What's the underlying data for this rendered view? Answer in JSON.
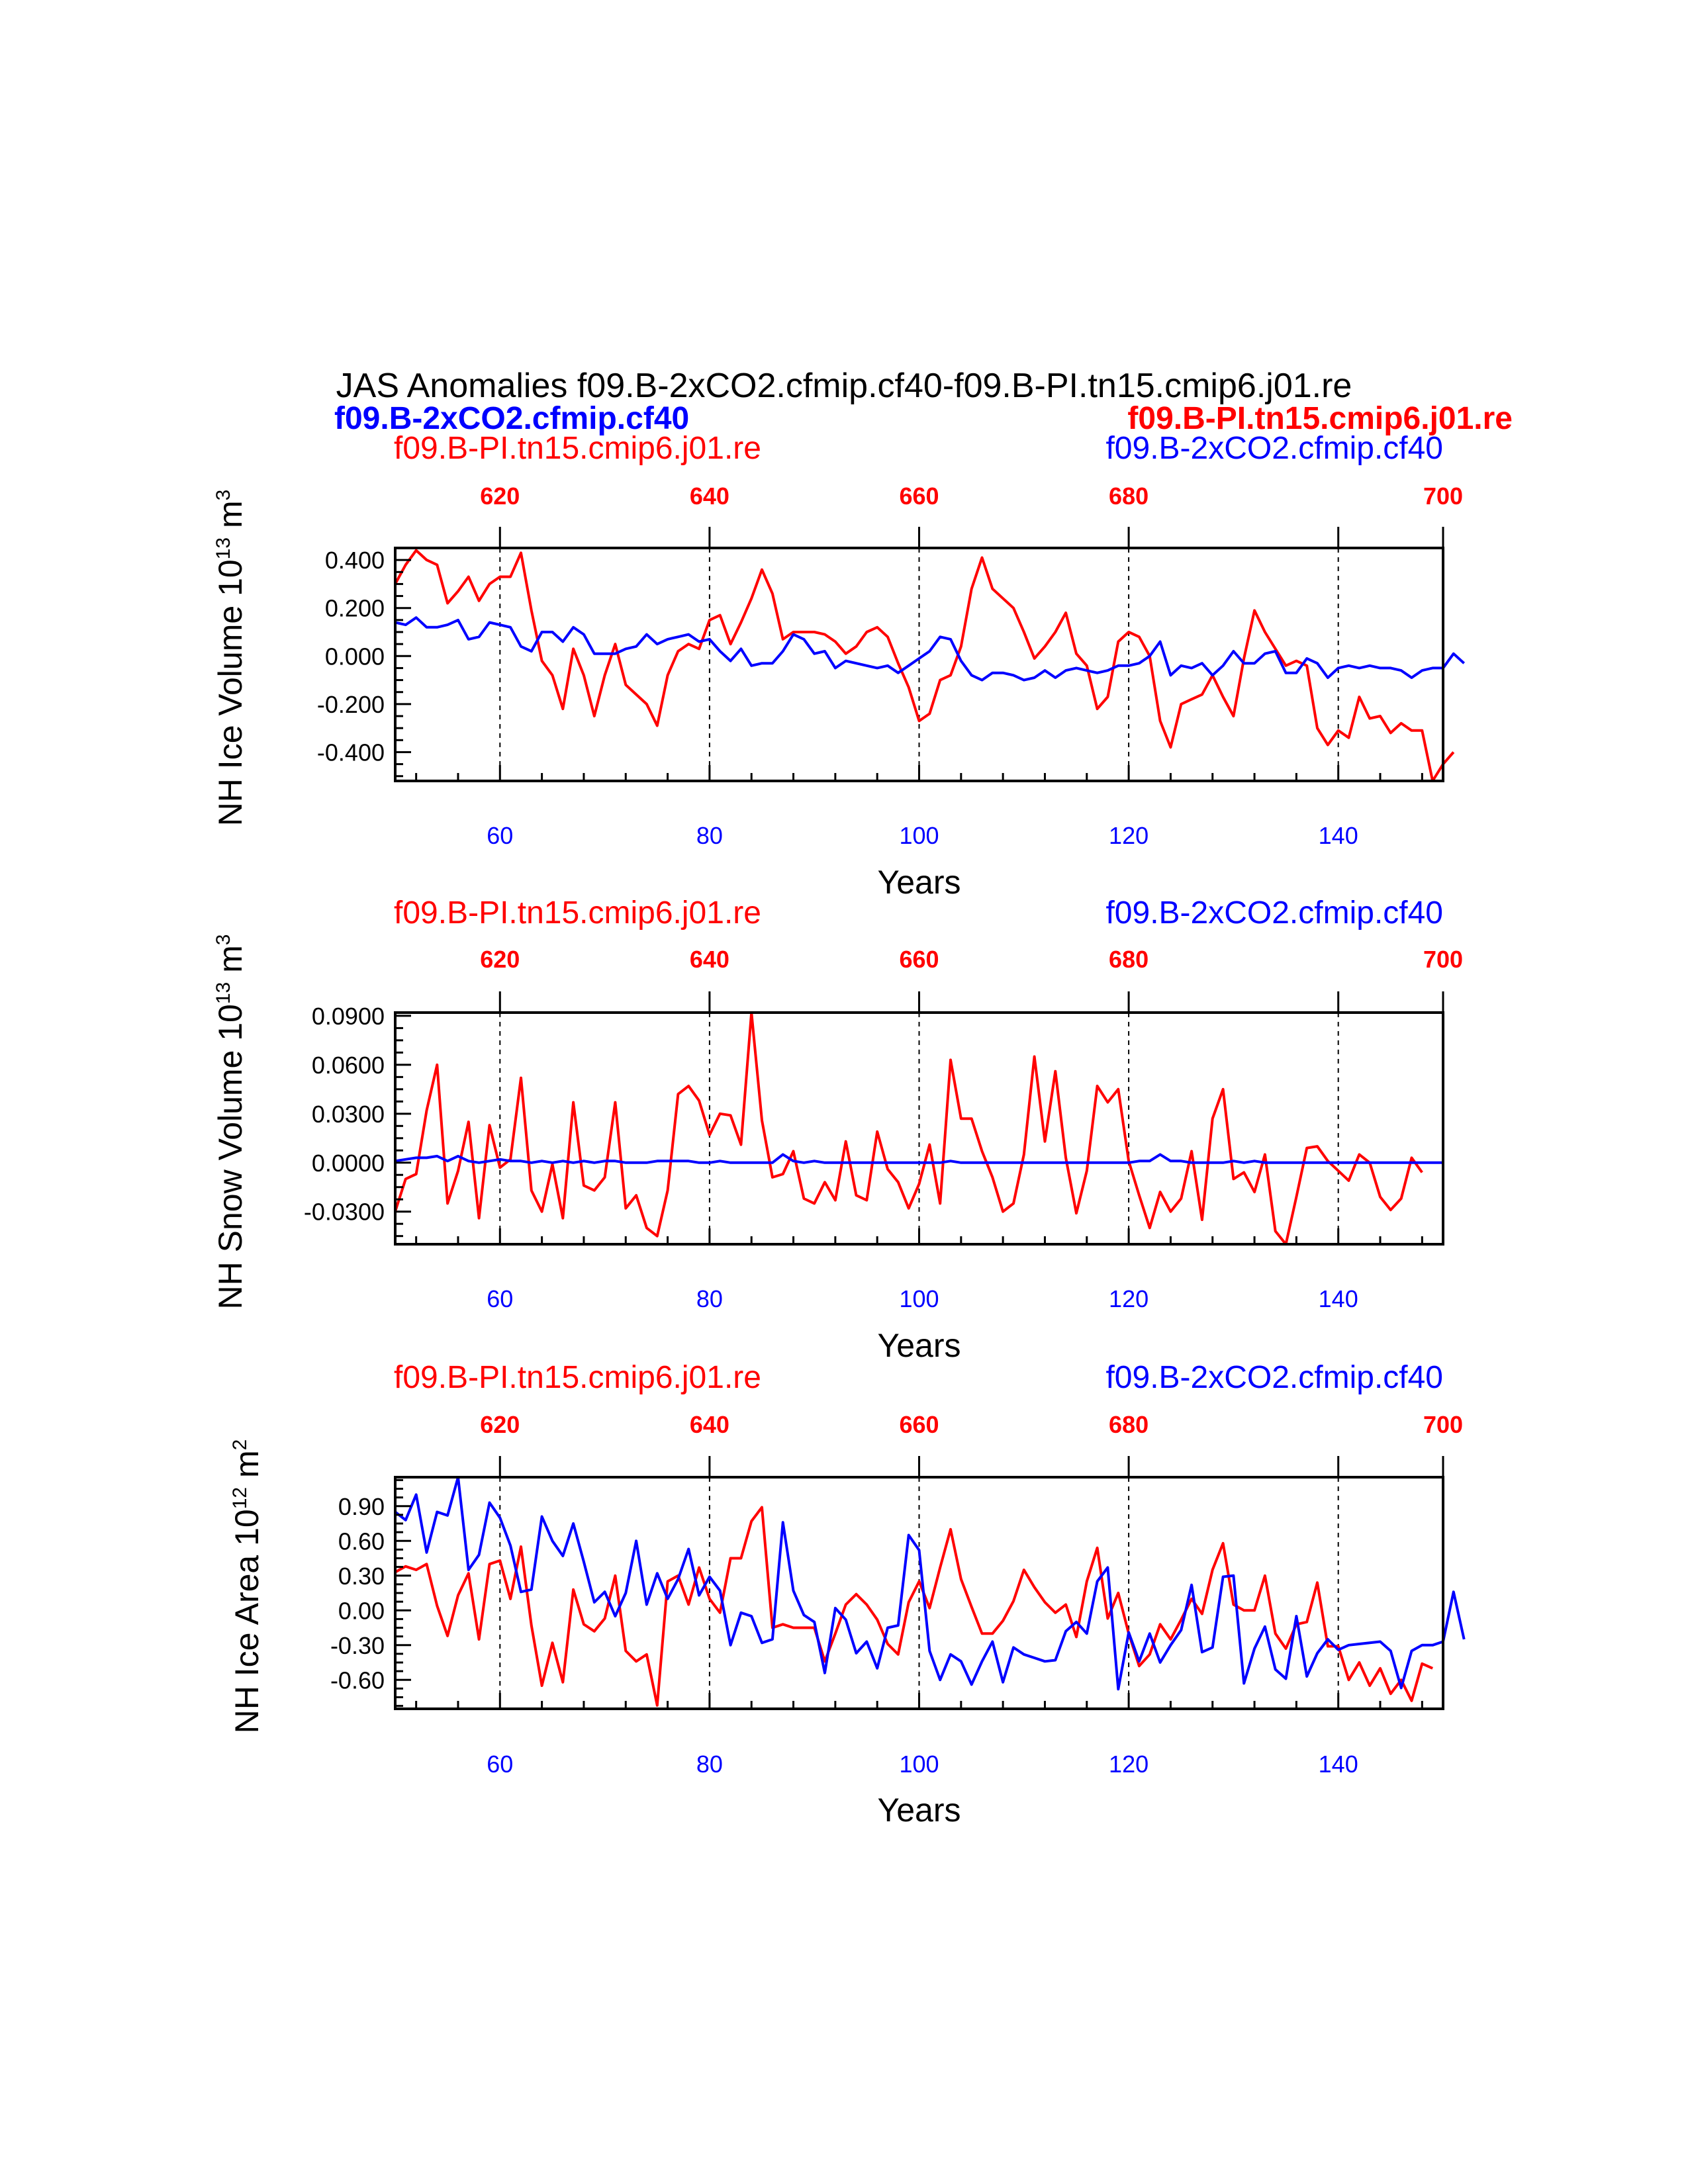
{
  "title": "JAS Anomalies f09.B-2xCO2.cfmip.cf40-f09.B-PI.tn15.cmip6.j01.re",
  "header_bold": {
    "left": {
      "text": "f09.B-2xCO2.cfmip.cf40",
      "color": "#0000ff"
    },
    "right": {
      "text": "f09.B-PI.tn15.cmip6.j01.re",
      "color": "#ff0000"
    }
  },
  "colors": {
    "series_a": "#0000ff",
    "series_b": "#ff0000",
    "axis": "#000000"
  },
  "chart_data": [
    {
      "type": "line",
      "id": "ice-volume",
      "left_label": "f09.B-PI.tn15.cmip6.j01.re",
      "right_label": "f09.B-2xCO2.cfmip.cf40",
      "ylabel_main": "NH Ice Volume 10",
      "ylabel_sup": "13",
      "ylabel_unit": " m",
      "ylabel_unit_sup": "3",
      "xlabel": "Years",
      "xlim": [
        50,
        150
      ],
      "ylim": [
        -0.52,
        0.45
      ],
      "yticks": [
        -0.4,
        -0.2,
        0.0,
        0.2,
        0.4
      ],
      "ytick_labels": [
        "-0.400",
        "-0.200",
        "0.000",
        "0.200",
        "0.400"
      ],
      "xticks": [
        60,
        80,
        100,
        120,
        140
      ],
      "xtick_labels": [
        "60",
        "80",
        "100",
        "120",
        "140"
      ],
      "top_ticks": [
        60,
        80,
        100,
        120,
        140,
        150
      ],
      "top_tick_labels": [
        "620",
        "640",
        "660",
        "680",
        "700"
      ],
      "top_tick_positions": [
        60,
        80,
        100,
        120,
        150
      ],
      "vlines": [
        60,
        80,
        100,
        120,
        140
      ],
      "x_start": 50,
      "series": [
        {
          "name": "f09.B-2xCO2.cfmip.cf40",
          "color": "#0000ff",
          "values": [
            0.14,
            0.13,
            0.16,
            0.12,
            0.12,
            0.13,
            0.15,
            0.07,
            0.08,
            0.14,
            0.13,
            0.12,
            0.04,
            0.02,
            0.1,
            0.1,
            0.06,
            0.12,
            0.09,
            0.01,
            0.01,
            0.01,
            0.03,
            0.04,
            0.09,
            0.05,
            0.07,
            0.08,
            0.09,
            0.06,
            0.07,
            0.02,
            -0.02,
            0.03,
            -0.04,
            -0.03,
            -0.03,
            0.02,
            0.09,
            0.07,
            0.01,
            0.02,
            -0.05,
            -0.02,
            -0.03,
            -0.04,
            -0.05,
            -0.04,
            -0.07,
            -0.04,
            -0.01,
            0.02,
            0.08,
            0.07,
            -0.02,
            -0.08,
            -0.1,
            -0.07,
            -0.07,
            -0.08,
            -0.1,
            -0.09,
            -0.06,
            -0.09,
            -0.06,
            -0.05,
            -0.06,
            -0.07,
            -0.06,
            -0.04,
            -0.04,
            -0.03,
            0.0,
            0.06,
            -0.08,
            -0.04,
            -0.05,
            -0.03,
            -0.08,
            -0.04,
            0.02,
            -0.03,
            -0.03,
            0.01,
            0.02,
            -0.07,
            -0.07,
            -0.01,
            -0.03,
            -0.09,
            -0.05,
            -0.04,
            -0.05,
            -0.04,
            -0.05,
            -0.05,
            -0.06,
            -0.09,
            -0.06,
            -0.05,
            -0.05,
            0.01,
            -0.03
          ]
        },
        {
          "name": "f09.B-PI.tn15.cmip6.j01.re",
          "color": "#ff0000",
          "values": [
            0.3,
            0.38,
            0.44,
            0.4,
            0.38,
            0.22,
            0.27,
            0.33,
            0.23,
            0.3,
            0.33,
            0.33,
            0.43,
            0.19,
            -0.02,
            -0.08,
            -0.22,
            0.03,
            -0.08,
            -0.25,
            -0.08,
            0.05,
            -0.12,
            -0.16,
            -0.2,
            -0.29,
            -0.08,
            0.02,
            0.05,
            0.03,
            0.15,
            0.17,
            0.05,
            0.14,
            0.24,
            0.36,
            0.26,
            0.07,
            0.1,
            0.1,
            0.1,
            0.09,
            0.06,
            0.01,
            0.04,
            0.1,
            0.12,
            0.08,
            -0.03,
            -0.13,
            -0.27,
            -0.24,
            -0.1,
            -0.08,
            0.04,
            0.28,
            0.41,
            0.28,
            0.24,
            0.2,
            0.1,
            -0.01,
            0.04,
            0.1,
            0.18,
            0.01,
            -0.04,
            -0.22,
            -0.17,
            0.06,
            0.1,
            0.08,
            0.0,
            -0.27,
            -0.38,
            -0.2,
            -0.18,
            -0.16,
            -0.08,
            -0.17,
            -0.25,
            -0.01,
            0.19,
            0.1,
            0.03,
            -0.04,
            -0.02,
            -0.04,
            -0.3,
            -0.37,
            -0.31,
            -0.34,
            -0.17,
            -0.26,
            -0.25,
            -0.32,
            -0.28,
            -0.31,
            -0.31,
            -0.52,
            -0.45,
            -0.4
          ]
        }
      ]
    },
    {
      "type": "line",
      "id": "snow-volume",
      "left_label": "f09.B-PI.tn15.cmip6.j01.re",
      "right_label": "f09.B-2xCO2.cfmip.cf40",
      "ylabel_main": "NH Snow Volume 10",
      "ylabel_sup": "13",
      "ylabel_unit": " m",
      "ylabel_unit_sup": "3",
      "xlabel": "Years",
      "xlim": [
        50,
        150
      ],
      "ylim": [
        -0.05,
        0.092
      ],
      "yticks": [
        -0.03,
        0.0,
        0.03,
        0.06,
        0.09
      ],
      "ytick_labels": [
        "-0.0300",
        "0.0000",
        "0.0300",
        "0.0600",
        "0.0900"
      ],
      "xticks": [
        60,
        80,
        100,
        120,
        140
      ],
      "xtick_labels": [
        "60",
        "80",
        "100",
        "120",
        "140"
      ],
      "top_ticks": [
        60,
        80,
        100,
        120,
        140,
        150
      ],
      "top_tick_labels": [
        "620",
        "640",
        "660",
        "680",
        "700"
      ],
      "top_tick_positions": [
        60,
        80,
        100,
        120,
        150
      ],
      "vlines": [
        60,
        80,
        100,
        120,
        140
      ],
      "x_start": 50,
      "series": [
        {
          "name": "f09.B-2xCO2.cfmip.cf40",
          "color": "#0000ff",
          "values": [
            0.001,
            0.002,
            0.003,
            0.003,
            0.004,
            0.001,
            0.004,
            0.001,
            0.0,
            0.001,
            0.002,
            0.001,
            0.001,
            0.0,
            0.001,
            0.0,
            0.001,
            0.0,
            0.001,
            0.0,
            0.001,
            0.001,
            0.0,
            0.0,
            0.0,
            0.001,
            0.001,
            0.001,
            0.001,
            0.0,
            0.0,
            0.001,
            0.0,
            0.0,
            0.0,
            0.0,
            0.0,
            0.005,
            0.001,
            0.0,
            0.001,
            0.0,
            0.0,
            0.0,
            0.0,
            0.0,
            0.0,
            0.0,
            0.0,
            0.0,
            0.0,
            0.0,
            0.0,
            0.001,
            0.0,
            0.0,
            0.0,
            0.0,
            0.0,
            0.0,
            0.0,
            0.0,
            0.0,
            0.0,
            0.0,
            0.0,
            0.0,
            0.0,
            0.0,
            0.0,
            0.0,
            0.001,
            0.001,
            0.005,
            0.001,
            0.001,
            0.0,
            0.0,
            0.0,
            0.0,
            0.001,
            0.0,
            0.001,
            0.0,
            0.0,
            0.0,
            0.0,
            0.0,
            0.0,
            0.0,
            0.0,
            0.0,
            0.0,
            0.0,
            0.0,
            0.0,
            0.0,
            0.0,
            0.0,
            0.0,
            0.0
          ]
        },
        {
          "name": "f09.B-PI.tn15.cmip6.j01.re",
          "color": "#ff0000",
          "values": [
            -0.03,
            -0.01,
            -0.007,
            0.032,
            0.06,
            -0.025,
            -0.005,
            0.025,
            -0.034,
            0.023,
            -0.003,
            0.002,
            0.052,
            -0.017,
            -0.03,
            -0.001,
            -0.034,
            0.037,
            -0.014,
            -0.017,
            -0.009,
            0.037,
            -0.028,
            -0.02,
            -0.04,
            -0.045,
            -0.017,
            0.042,
            0.047,
            0.038,
            0.017,
            0.03,
            0.029,
            0.011,
            0.092,
            0.026,
            -0.009,
            -0.007,
            0.007,
            -0.022,
            -0.025,
            -0.012,
            -0.023,
            0.013,
            -0.02,
            -0.023,
            0.019,
            -0.004,
            -0.012,
            -0.028,
            -0.013,
            0.011,
            -0.025,
            0.063,
            0.027,
            0.027,
            0.007,
            -0.009,
            -0.03,
            -0.025,
            0.005,
            0.065,
            0.013,
            0.056,
            0.003,
            -0.031,
            -0.005,
            0.047,
            0.037,
            0.045,
            0.001,
            -0.02,
            -0.04,
            -0.018,
            -0.03,
            -0.022,
            0.007,
            -0.035,
            0.027,
            0.045,
            -0.01,
            -0.006,
            -0.018,
            0.005,
            -0.042,
            -0.05,
            -0.021,
            0.009,
            0.01,
            0.001,
            -0.005,
            -0.011,
            0.005,
            0.0,
            -0.021,
            -0.029,
            -0.022,
            0.003,
            -0.006
          ]
        }
      ]
    },
    {
      "type": "line",
      "id": "ice-area",
      "left_label": "f09.B-PI.tn15.cmip6.j01.re",
      "right_label": "f09.B-2xCO2.cfmip.cf40",
      "ylabel_main": "NH Ice Area 10",
      "ylabel_sup": "12",
      "ylabel_unit": " m",
      "ylabel_unit_sup": "2",
      "xlabel": "Years",
      "xlim": [
        50,
        150
      ],
      "ylim": [
        -0.85,
        1.15
      ],
      "yticks": [
        -0.6,
        -0.3,
        0.0,
        0.3,
        0.6,
        0.9
      ],
      "ytick_labels": [
        "-0.60",
        "-0.30",
        "0.00",
        "0.30",
        "0.60",
        "0.90"
      ],
      "xticks": [
        60,
        80,
        100,
        120,
        140
      ],
      "xtick_labels": [
        "60",
        "80",
        "100",
        "120",
        "140"
      ],
      "top_ticks": [
        60,
        80,
        100,
        120,
        140,
        150
      ],
      "top_tick_labels": [
        "620",
        "640",
        "660",
        "680",
        "700"
      ],
      "top_tick_positions": [
        60,
        80,
        100,
        120,
        150
      ],
      "vlines": [
        60,
        80,
        100,
        120,
        140
      ],
      "x_start": 50,
      "series": [
        {
          "name": "f09.B-2xCO2.cfmip.cf40",
          "color": "#0000ff",
          "values": [
            0.85,
            0.78,
            1.0,
            0.5,
            0.85,
            0.82,
            1.15,
            0.35,
            0.48,
            0.93,
            0.8,
            0.56,
            0.16,
            0.18,
            0.81,
            0.6,
            0.47,
            0.75,
            0.42,
            0.07,
            0.16,
            -0.05,
            0.15,
            0.6,
            0.05,
            0.32,
            0.1,
            0.27,
            0.53,
            0.13,
            0.29,
            0.17,
            -0.3,
            -0.02,
            -0.05,
            -0.28,
            -0.25,
            0.76,
            0.17,
            -0.04,
            -0.1,
            -0.54,
            0.02,
            -0.08,
            -0.37,
            -0.27,
            -0.5,
            -0.15,
            -0.13,
            0.65,
            0.52,
            -0.35,
            -0.6,
            -0.38,
            -0.44,
            -0.64,
            -0.44,
            -0.27,
            -0.62,
            -0.32,
            -0.38,
            -0.41,
            -0.44,
            -0.43,
            -0.18,
            -0.1,
            -0.2,
            0.25,
            0.37,
            -0.68,
            -0.19,
            -0.44,
            -0.2,
            -0.45,
            -0.3,
            -0.17,
            0.22,
            -0.36,
            -0.32,
            0.29,
            0.3,
            -0.63,
            -0.33,
            -0.14,
            -0.51,
            -0.59,
            -0.05,
            -0.57,
            -0.37,
            -0.25,
            -0.34,
            -0.3,
            -0.29,
            -0.28,
            -0.27,
            -0.35,
            -0.67,
            -0.35,
            -0.3,
            -0.3,
            -0.27,
            0.16,
            -0.25
          ]
        },
        {
          "name": "f09.B-PI.tn15.cmip6.j01.re",
          "color": "#ff0000",
          "values": [
            0.33,
            0.38,
            0.35,
            0.4,
            0.04,
            -0.22,
            0.13,
            0.32,
            -0.25,
            0.4,
            0.43,
            0.1,
            0.55,
            -0.13,
            -0.65,
            -0.28,
            -0.62,
            0.18,
            -0.12,
            -0.18,
            -0.07,
            0.3,
            -0.35,
            -0.44,
            -0.38,
            -0.82,
            0.25,
            0.3,
            0.05,
            0.37,
            0.1,
            -0.02,
            0.45,
            0.45,
            0.77,
            0.89,
            -0.15,
            -0.12,
            -0.15,
            -0.15,
            -0.15,
            -0.44,
            -0.2,
            0.05,
            0.14,
            0.05,
            -0.08,
            -0.29,
            -0.38,
            0.07,
            0.25,
            0.02,
            0.37,
            0.7,
            0.27,
            0.03,
            -0.2,
            -0.2,
            -0.09,
            0.08,
            0.35,
            0.2,
            0.07,
            -0.02,
            0.05,
            -0.23,
            0.25,
            0.54,
            -0.07,
            0.15,
            -0.2,
            -0.48,
            -0.38,
            -0.12,
            -0.25,
            -0.08,
            0.1,
            -0.03,
            0.35,
            0.58,
            0.05,
            0.0,
            0.0,
            0.3,
            -0.2,
            -0.33,
            -0.12,
            -0.1,
            0.24,
            -0.31,
            -0.31,
            -0.6,
            -0.45,
            -0.65,
            -0.5,
            -0.72,
            -0.6,
            -0.78,
            -0.46,
            -0.5
          ]
        }
      ]
    }
  ]
}
